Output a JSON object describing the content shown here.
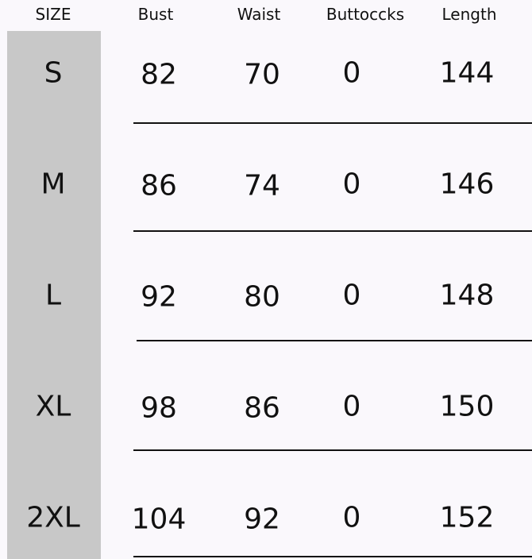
{
  "headers": [
    "SIZE",
    "Bust",
    "Waist",
    "Buttoccks",
    "Length"
  ],
  "rows": [
    {
      "size": "S",
      "bust": "82",
      "waist": "70",
      "buttocks": "0",
      "length": "144"
    },
    {
      "size": "M",
      "bust": "86",
      "waist": "74",
      "buttocks": "0",
      "length": "146"
    },
    {
      "size": "L",
      "bust": "92",
      "waist": "80",
      "buttocks": "0",
      "length": "148"
    },
    {
      "size": "XL",
      "bust": "98",
      "waist": "86",
      "buttocks": "0",
      "length": "150"
    },
    {
      "size": "2XL",
      "bust": "104",
      "waist": "92",
      "buttocks": "0",
      "length": "152"
    }
  ],
  "colors": {
    "size_column": "#c8c8c8",
    "background": "#faf8fc"
  }
}
